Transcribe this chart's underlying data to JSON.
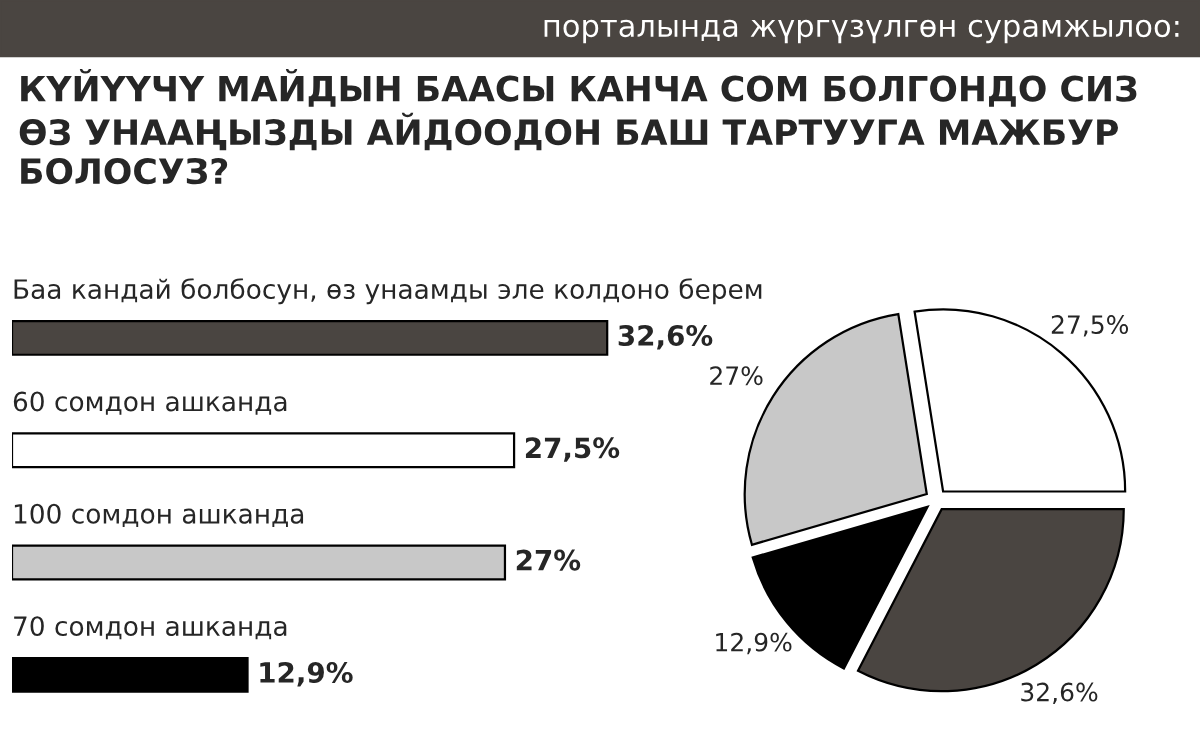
{
  "chart_data": [
    {
      "type": "bar",
      "orientation": "horizontal",
      "subtitle": "порталында жүргүзүлгөн сурамжылоо:",
      "title": "КҮЙҮҮЧҮ МАЙДЫН БААСЫ КАНЧА СОМ БОЛГОНДО СИЗ ӨЗ УНААҢЫЗДЫ АЙДООДОН БАШ ТАРТУУГА МАЖБУР БОЛОСУЗ?",
      "categories": [
        "Баа кандай болбосун, өз унаамды эле колдоно берем",
        "60 сомдон ашканда",
        "100 сомдон ашканда",
        "70 сомдон ашканда"
      ],
      "values": [
        32.6,
        27.5,
        27,
        12.9
      ],
      "colors": [
        "#4a4541",
        "#ffffff",
        "#c8c8c8",
        "#000000"
      ],
      "value_labels": [
        "32,6%",
        "27,5%",
        "27%",
        "12,9%"
      ]
    },
    {
      "type": "pie",
      "categories": [
        null,
        null,
        null,
        null
      ],
      "values": [
        27.5,
        32.6,
        12.9,
        27
      ],
      "colors": [
        "#ffffff",
        "#4a4541",
        "#000000",
        "#c8c8c8"
      ],
      "value_labels": [
        "27,5%",
        "32,6%",
        "12,9%",
        "27%"
      ]
    }
  ]
}
